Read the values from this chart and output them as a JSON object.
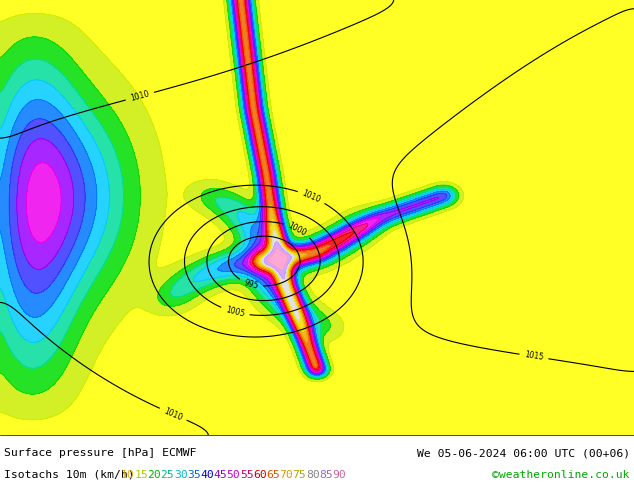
{
  "title_left": "Surface pressure [hPa] ECMWF",
  "title_right": "We 05-06-2024 06:00 UTC (00+06)",
  "subtitle_left": "Isotachs 10m (km/h)",
  "copyright": "©weatheronline.co.uk",
  "isotach_values": [
    10,
    15,
    20,
    25,
    30,
    35,
    40,
    45,
    50,
    55,
    60,
    65,
    70,
    75,
    80,
    85,
    90
  ],
  "fig_width": 6.34,
  "fig_height": 4.9,
  "dpi": 100,
  "bg_color": "#b8d8a0",
  "label_colors": [
    "#ddaa00",
    "#aacc00",
    "#00bb00",
    "#00bb88",
    "#00bbcc",
    "#0066cc",
    "#0000dd",
    "#8800cc",
    "#cc00cc",
    "#cc0066",
    "#cc0000",
    "#dd5500",
    "#dd9900",
    "#aaaa00",
    "#888888",
    "#9966cc",
    "#cc6699"
  ],
  "map_colors": [
    "#ffff00",
    "#ccee00",
    "#00dd00",
    "#00dd99",
    "#00ccff",
    "#0077ff",
    "#3333ff",
    "#9900ff",
    "#ee00ee",
    "#ee0077",
    "#ee0000",
    "#ee6600",
    "#eeaa00",
    "#eedd00",
    "#dddddd",
    "#cc99ff",
    "#ff99cc"
  ],
  "pressure_line_color": "#000000",
  "isotach_line_alpha": 0.85
}
